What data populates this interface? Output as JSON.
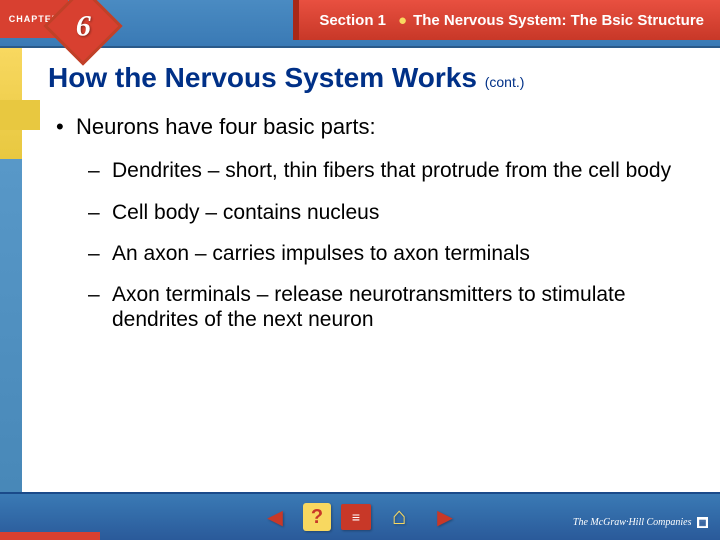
{
  "header": {
    "chapter_label": "CHAPTER",
    "chapter_number": "6",
    "section_label": "Section 1",
    "section_title": "The Nervous System: The Bsic Structure",
    "bg_color": "#3a7ab5",
    "accent_color": "#d84030"
  },
  "content": {
    "title": "How the Nervous System Works",
    "title_suffix": "(cont.)",
    "title_color": "#003087",
    "title_fontsize": 28,
    "bullets": [
      {
        "level": 1,
        "text": "Neurons have four basic parts:"
      },
      {
        "level": 2,
        "text": "Dendrites – short, thin fibers that protrude from the cell body"
      },
      {
        "level": 2,
        "text": "Cell body – contains nucleus"
      },
      {
        "level": 2,
        "text": "An axon – carries impulses to axon terminals"
      },
      {
        "level": 2,
        "text": "Axon terminals – release neurotransmitters to stimulate dendrites of the next neuron"
      }
    ],
    "body_fontsize": 22,
    "text_color": "#000000"
  },
  "footer": {
    "publisher": "The McGraw·Hill Companies",
    "bg_color": "#2a5a9a",
    "nav": {
      "prev": "◄",
      "help": "?",
      "book": "≡",
      "home": "⌂",
      "next": "►"
    }
  },
  "colors": {
    "yellow": "#f8d860",
    "blue": "#4888b8",
    "red": "#d84030",
    "white": "#ffffff"
  }
}
